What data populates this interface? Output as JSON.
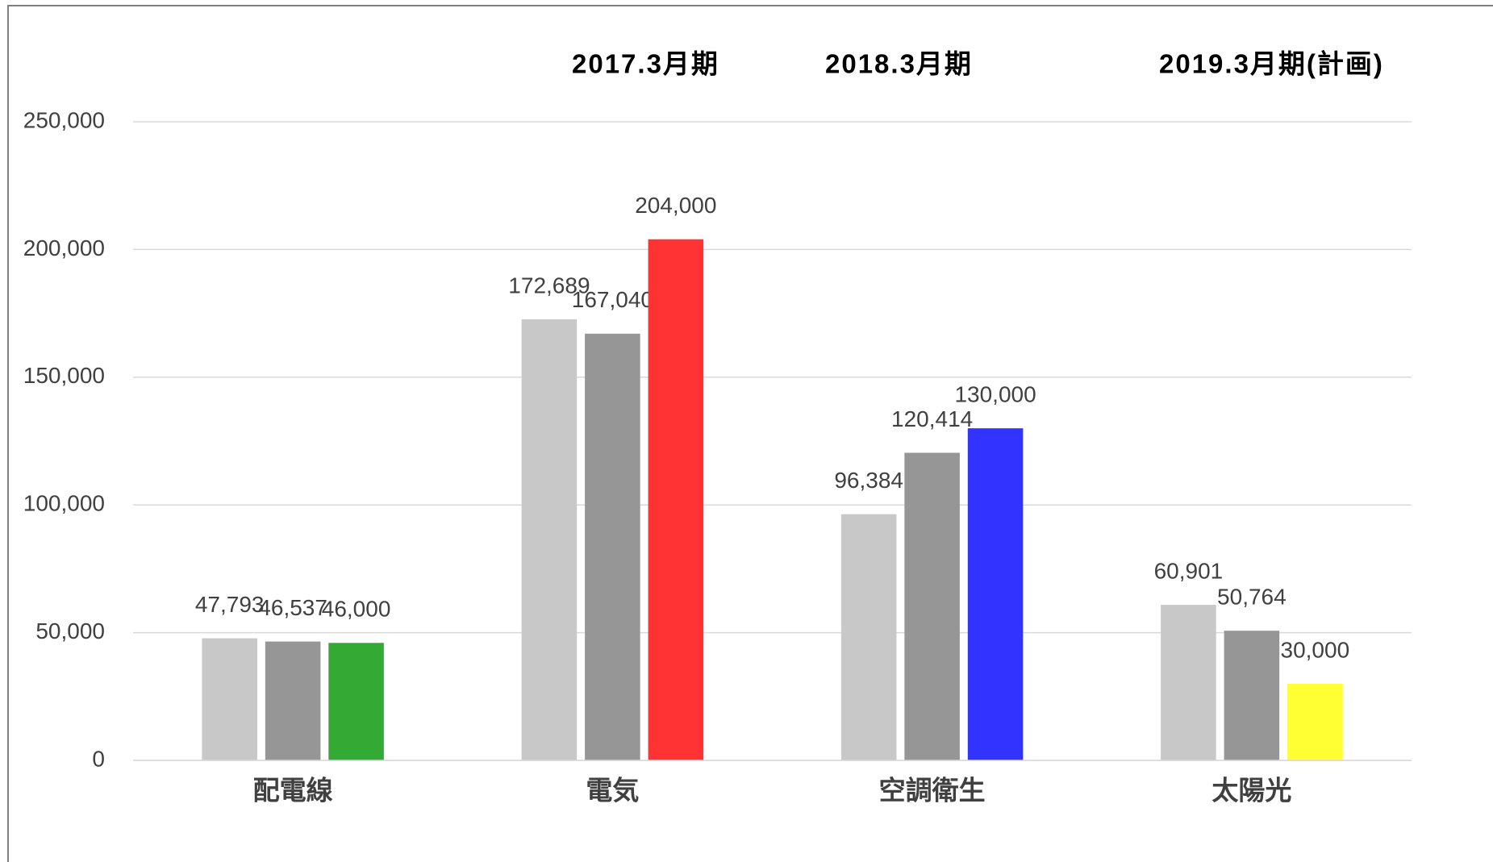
{
  "chart_data": {
    "type": "bar",
    "categories": [
      "配電線",
      "電気",
      "空調衛生",
      "太陽光"
    ],
    "series": [
      {
        "name": "2017.3月期",
        "color": "#c8c8c8",
        "values": [
          47793,
          172689,
          96384,
          60901
        ],
        "value_labels": [
          "47,793",
          "172,689",
          "96,384",
          "60,901"
        ]
      },
      {
        "name": "2018.3月期",
        "color": "#969696",
        "values": [
          46537,
          167040,
          120414,
          50764
        ],
        "value_labels": [
          "46,537",
          "167,040",
          "120,414",
          "50,764"
        ]
      },
      {
        "name": "2019.3月期(計画)",
        "colors": [
          "#33aa33",
          "#ff3333",
          "#3333ff",
          "#ffff33"
        ],
        "values": [
          46000,
          204000,
          130000,
          30000
        ],
        "value_labels": [
          "46,000",
          "204,000",
          "130,000",
          "30,000"
        ]
      }
    ],
    "ylim": [
      0,
      250000
    ],
    "yticks": [
      0,
      {
        "value": 50000,
        "label": "50,000"
      },
      {
        "value": 100000,
        "label": "100,000"
      },
      {
        "value": 150000,
        "label": "150,000"
      },
      {
        "value": 200000,
        "label": "200,000"
      },
      {
        "value": 250000,
        "label": "250,000"
      }
    ],
    "grid": true
  }
}
